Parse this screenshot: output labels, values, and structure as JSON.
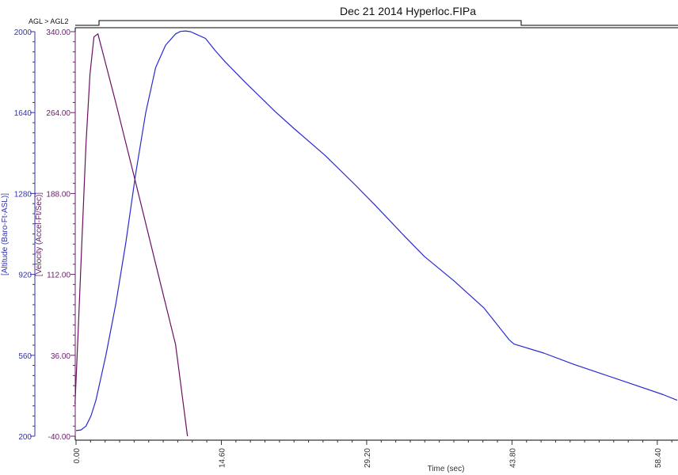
{
  "chart_data": {
    "type": "line",
    "title": "Dec 21 2014 Hyperloc.FIPa",
    "event_label": "AGL > AGL2",
    "xlabel": "Time (sec)",
    "xlim": [
      0,
      60.4
    ],
    "x_ticks": [
      "0.00",
      "14.60",
      "29.20",
      "43.80",
      "58.40"
    ],
    "x_tick_values": [
      0,
      14.6,
      29.2,
      43.8,
      58.4
    ],
    "y_axes": [
      {
        "id": "altitude",
        "label": "[Altitude (Baro-Ft-ASL)]",
        "ylim": [
          200,
          2000
        ],
        "ticks": [
          "2000",
          "1640",
          "1280",
          "920",
          "560",
          "200"
        ],
        "tick_values": [
          2000,
          1640,
          1280,
          920,
          560,
          200
        ],
        "color": "#3333aa"
      },
      {
        "id": "velocity",
        "label": "[Velocity (Accel-Ft/Sec)]",
        "ylim": [
          -40,
          340
        ],
        "ticks": [
          "340.00",
          "264.00",
          "188.00",
          "112.00",
          "36.00",
          "-40.00"
        ],
        "tick_values": [
          340,
          264,
          188,
          112,
          36,
          -40
        ],
        "color": "#662266"
      }
    ],
    "series": [
      {
        "axis": "altitude",
        "color": "#2a2ad0",
        "x": [
          0,
          0.5,
          1,
          1.5,
          2,
          3,
          4,
          5,
          6,
          7,
          8,
          9,
          10,
          10.5,
          11,
          11.5,
          12,
          13,
          14,
          15,
          17,
          20,
          22,
          25,
          28,
          30,
          33,
          35,
          38,
          41,
          43.5,
          44,
          47,
          50,
          53,
          56,
          59,
          60.4
        ],
        "y": [
          225,
          228,
          245,
          290,
          360,
          560,
          790,
          1060,
          1370,
          1640,
          1840,
          1940,
          1990,
          2001,
          2003,
          2000,
          1990,
          1970,
          1915,
          1865,
          1775,
          1645,
          1565,
          1450,
          1320,
          1230,
          1090,
          1000,
          890,
          770,
          630,
          610,
          570,
          520,
          475,
          430,
          385,
          360
        ]
      },
      {
        "axis": "velocity",
        "color": "#6a1060",
        "x": [
          -0.1,
          0.2,
          0.6,
          1,
          1.4,
          1.8,
          2.2,
          4,
          6,
          8,
          10,
          11.2
        ],
        "y": [
          -10,
          55,
          145,
          235,
          300,
          335,
          338,
          273,
          198,
          122,
          46,
          -40
        ]
      }
    ]
  }
}
